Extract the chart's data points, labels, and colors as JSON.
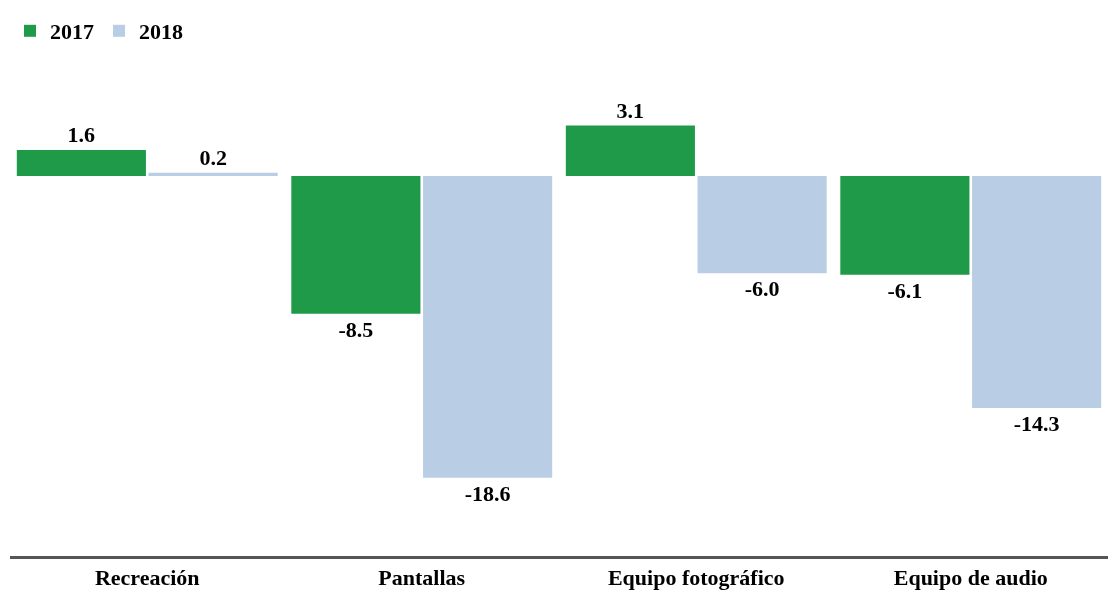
{
  "chart_data": {
    "type": "bar",
    "categories": [
      "Recreación",
      "Pantallas",
      "Equipo fotográfico",
      "Equipo de audio"
    ],
    "series": [
      {
        "name": "2017",
        "color": "#1f9a48",
        "values": [
          1.6,
          -8.5,
          3.1,
          -6.1
        ],
        "value_labels": [
          "1.6",
          "-8.5",
          "3.1",
          "-6.1"
        ]
      },
      {
        "name": "2018",
        "color": "#b9cde4",
        "values": [
          0.2,
          -18.6,
          -6.0,
          -14.3
        ],
        "value_labels": [
          "0.2",
          "-18.6",
          "-6.0",
          "-14.3"
        ]
      }
    ],
    "legend": "top left",
    "grid": false
  }
}
